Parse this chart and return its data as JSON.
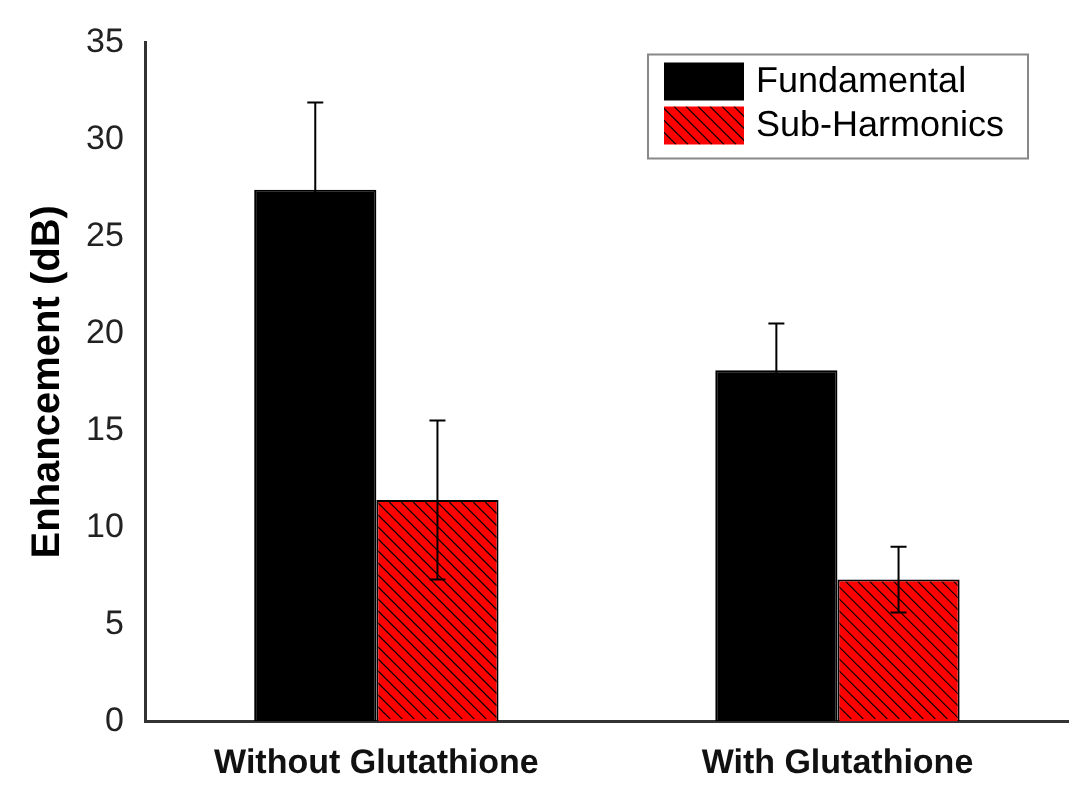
{
  "chart_data": {
    "type": "bar",
    "ylabel": "Enhancement (dB)",
    "categories": [
      "Without Glutathione",
      "With Glutathione"
    ],
    "series": [
      {
        "name": "Fundamental",
        "color": "#000000",
        "values": [
          27.4,
          18.1
        ],
        "errors": [
          4.5,
          2.4
        ]
      },
      {
        "name": "Sub-Harmonics",
        "color": "#ff0000",
        "values": [
          11.4,
          7.3
        ],
        "errors": [
          4.1,
          1.7
        ]
      }
    ],
    "ylim": [
      0,
      35
    ],
    "yticks": [
      0,
      5,
      10,
      15,
      20,
      25,
      30,
      35
    ],
    "grid": false,
    "legend": "top right"
  }
}
